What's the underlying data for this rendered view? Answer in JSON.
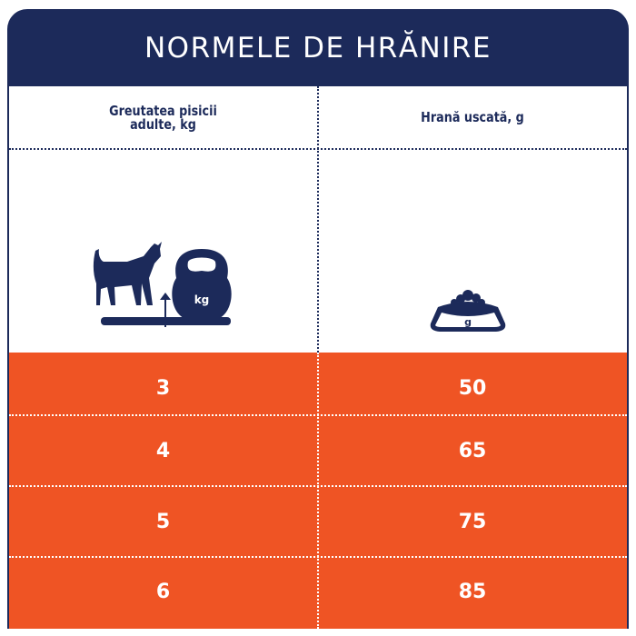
{
  "title": "NORMELE DE HRĂNIRE",
  "columns": [
    {
      "label": "Greutatea pisicii adulte, kg",
      "icon": "cat-kettlebell-scale-icon",
      "icon_text": "kg"
    },
    {
      "label": "Hrană uscată, g",
      "icon": "food-bowl-icon",
      "icon_text": "g"
    }
  ],
  "rows": [
    {
      "weight": "3",
      "food": "50"
    },
    {
      "weight": "4",
      "food": "65"
    },
    {
      "weight": "5",
      "food": "75"
    },
    {
      "weight": "6",
      "food": "85"
    }
  ],
  "colors": {
    "navy": "#1c2a5a",
    "orange": "#ef5424"
  }
}
